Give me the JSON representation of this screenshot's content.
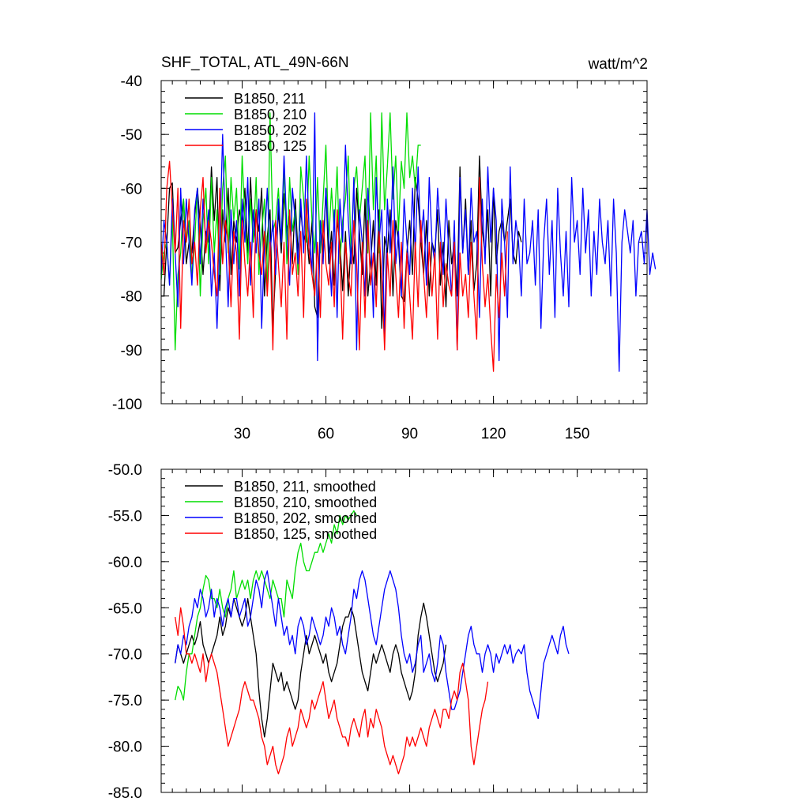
{
  "chart_data": [
    {
      "type": "line",
      "title": "SHF_TOTAL, ATL_49N-66N",
      "units": "watt/m^2",
      "xlabel": "",
      "ylabel": "",
      "xlim": [
        1,
        175
      ],
      "ylim": [
        -100,
        -40
      ],
      "xticks": [
        30,
        60,
        90,
        120,
        150
      ],
      "xtick_labels": [
        "30",
        "60",
        "90",
        "120",
        "150"
      ],
      "yticks": [
        -100,
        -90,
        -80,
        -70,
        -60,
        -50,
        -40
      ],
      "ytick_labels": [
        "-100",
        "-90",
        "-80",
        "-70",
        "-60",
        "-50",
        "-40"
      ],
      "legend_position": "top-left",
      "series": [
        {
          "name": "B1850, 211",
          "color": "#000000",
          "x_start": 1,
          "values": [
            -80,
            -80,
            -70,
            -60,
            -59,
            -72,
            -71,
            -66,
            -62,
            -74,
            -70,
            -72,
            -65,
            -60,
            -67,
            -76,
            -68,
            -70,
            -56,
            -66,
            -58,
            -79,
            -64,
            -70,
            -60,
            -76,
            -66,
            -70,
            -64,
            -67,
            -60,
            -72,
            -58,
            -70,
            -64,
            -68,
            -60,
            -80,
            -69,
            -64,
            -86,
            -75,
            -64,
            -72,
            -61,
            -68,
            -65,
            -74,
            -62,
            -72,
            -64,
            -70,
            -68,
            -74,
            -66,
            -82,
            -84,
            -66,
            -72,
            -60,
            -74,
            -68,
            -78,
            -66,
            -70,
            -79,
            -68,
            -80,
            -70,
            -74,
            -60,
            -68,
            -76,
            -62,
            -80,
            -74,
            -66,
            -78,
            -64,
            -86,
            -69,
            -72,
            -64,
            -80,
            -66,
            -70,
            -80,
            -81,
            -72,
            -66,
            -76,
            -58,
            -62,
            -70,
            -76,
            -66,
            -80,
            -70,
            -72,
            -64,
            -78,
            -70,
            -82,
            -66,
            -74,
            -70,
            -80,
            -56,
            -72,
            -62,
            -76,
            -66,
            -79,
            -74,
            -54,
            -68,
            -72,
            -64,
            -80,
            -60,
            -74,
            -68,
            -66,
            -70,
            -66,
            -62,
            -72,
            -74,
            -68,
            -70
          ]
        },
        {
          "name": "B1850, 210",
          "color": "#00dd00",
          "x_start": 1,
          "values": [
            -77,
            -72,
            -70,
            -78,
            -65,
            -90,
            -76,
            -72,
            -62,
            -70,
            -66,
            -77,
            -70,
            -60,
            -80,
            -66,
            -60,
            -74,
            -58,
            -72,
            -64,
            -76,
            -60,
            -54,
            -72,
            -58,
            -66,
            -60,
            -75,
            -54,
            -66,
            -74,
            -62,
            -70,
            -58,
            -76,
            -68,
            -62,
            -80,
            -46,
            -68,
            -66,
            -60,
            -70,
            -56,
            -74,
            -58,
            -68,
            -64,
            -76,
            -56,
            -62,
            -70,
            -54,
            -66,
            -72,
            -58,
            -72,
            -62,
            -52,
            -70,
            -60,
            -68,
            -56,
            -74,
            -66,
            -62,
            -54,
            -72,
            -60,
            -56,
            -66,
            -60,
            -54,
            -72,
            -46,
            -64,
            -54,
            -72,
            -46,
            -64,
            -56,
            -46,
            -62,
            -54,
            -68,
            -55,
            -60,
            -46,
            -58,
            -54,
            -60,
            -52,
            -52
          ]
        },
        {
          "name": "B1850, 202",
          "color": "#0000ff",
          "x_start": 1,
          "values": [
            -76,
            -66,
            -70,
            -78,
            -62,
            -72,
            -82,
            -60,
            -74,
            -62,
            -70,
            -78,
            -64,
            -60,
            -74,
            -62,
            -70,
            -64,
            -80,
            -72,
            -86,
            -70,
            -50,
            -68,
            -82,
            -64,
            -74,
            -66,
            -80,
            -62,
            -70,
            -58,
            -78,
            -64,
            -72,
            -62,
            -86,
            -70,
            -60,
            -72,
            -66,
            -76,
            -62,
            -70,
            -54,
            -68,
            -78,
            -60,
            -66,
            -74,
            -62,
            -72,
            -54,
            -68,
            -76,
            -46,
            -92,
            -66,
            -74,
            -60,
            -70,
            -80,
            -64,
            -84,
            -62,
            -70,
            -52,
            -66,
            -74,
            -58,
            -90,
            -64,
            -70,
            -80,
            -60,
            -68,
            -84,
            -58,
            -70,
            -64,
            -88,
            -62,
            -72,
            -56,
            -74,
            -68,
            -80,
            -62,
            -70,
            -76,
            -60,
            -72,
            -56,
            -70,
            -64,
            -78,
            -58,
            -70,
            -74,
            -60,
            -68,
            -76,
            -62,
            -72,
            -80,
            -66,
            -90,
            -58,
            -72,
            -64,
            -76,
            -60,
            -70,
            -68,
            -84,
            -62,
            -74,
            -56,
            -70,
            -60,
            -66,
            -92,
            -62,
            -70,
            -84,
            -56,
            -74,
            -66,
            -70,
            -80,
            -62,
            -74,
            -72,
            -66,
            -78,
            -64,
            -86,
            -70,
            -62,
            -76,
            -66,
            -84,
            -60,
            -72,
            -80,
            -68,
            -82,
            -58,
            -70,
            -66,
            -76,
            -60,
            -72,
            -64,
            -80,
            -68,
            -76,
            -62,
            -70,
            -74,
            -66,
            -80,
            -62,
            -72,
            -94,
            -70,
            -64,
            -68,
            -72,
            -66,
            -80,
            -70,
            -68,
            -74,
            -64,
            -76,
            -72,
            -75
          ]
        },
        {
          "name": "B1850, 125",
          "color": "#ff0000",
          "x_start": 1,
          "values": [
            -70,
            -76,
            -60,
            -55,
            -64,
            -72,
            -60,
            -86,
            -66,
            -70,
            -62,
            -74,
            -70,
            -78,
            -64,
            -58,
            -72,
            -66,
            -70,
            -76,
            -80,
            -60,
            -74,
            -66,
            -70,
            -82,
            -68,
            -72,
            -88,
            -66,
            -74,
            -80,
            -70,
            -84,
            -64,
            -72,
            -76,
            -68,
            -80,
            -70,
            -90,
            -66,
            -74,
            -82,
            -70,
            -88,
            -64,
            -76,
            -72,
            -80,
            -68,
            -84,
            -62,
            -72,
            -76,
            -80,
            -70,
            -84,
            -66,
            -74,
            -78,
            -70,
            -82,
            -64,
            -72,
            -88,
            -70,
            -76,
            -80,
            -66,
            -74,
            -90,
            -70,
            -84,
            -66,
            -78,
            -72,
            -82,
            -68,
            -76,
            -90,
            -72,
            -80,
            -66,
            -76,
            -84,
            -70,
            -86,
            -72,
            -80,
            -88,
            -70,
            -82,
            -66,
            -76,
            -84,
            -70,
            -80,
            -72,
            -88,
            -70,
            -82,
            -74,
            -78,
            -80,
            -70,
            -90,
            -72,
            -80,
            -76,
            -84,
            -70,
            -80,
            -88,
            -58,
            -74,
            -82,
            -76,
            -86,
            -94,
            -76,
            -84,
            -72,
            -80,
            -68
          ]
        }
      ]
    },
    {
      "type": "line",
      "title": "",
      "xlabel": "",
      "ylabel": "",
      "xlim": [
        1,
        175
      ],
      "ylim": [
        -85,
        -50
      ],
      "xticks": [
        30,
        60,
        90,
        120,
        150
      ],
      "yticks": [
        -85,
        -80,
        -75,
        -70,
        -65,
        -60,
        -55,
        -50
      ],
      "ytick_labels": [
        "-85.0",
        "-80.0",
        "-75.0",
        "-70.0",
        "-65.0",
        "-60.0",
        "-55.0",
        "-50.0"
      ],
      "legend_position": "top-left",
      "series": [
        {
          "name": "B1850, 211, smoothed",
          "color": "#000000",
          "x_start": 6,
          "values": [
            -71,
            -69,
            -70,
            -71,
            -70,
            -69,
            -68,
            -69,
            -68,
            -66.5,
            -69,
            -70,
            -71,
            -70,
            -69,
            -68,
            -66,
            -68,
            -67,
            -65,
            -66,
            -64,
            -65,
            -66,
            -67,
            -66,
            -64,
            -66,
            -68,
            -70,
            -74,
            -77,
            -79,
            -77,
            -74,
            -71,
            -72,
            -73,
            -72,
            -74,
            -73,
            -74,
            -75,
            -76,
            -75,
            -72,
            -70,
            -68,
            -70,
            -69,
            -68,
            -69,
            -70,
            -71,
            -70,
            -72,
            -73,
            -72,
            -71,
            -69,
            -67,
            -66,
            -66,
            -65,
            -66,
            -68,
            -70,
            -72,
            -73,
            -74,
            -72,
            -70,
            -71,
            -70,
            -69,
            -70,
            -71,
            -72,
            -70,
            -69,
            -70,
            -72,
            -73,
            -74,
            -75,
            -74,
            -72,
            -68,
            -66,
            -64.5,
            -66,
            -68,
            -70,
            -72,
            -73,
            -72,
            -71,
            -69
          ]
        },
        {
          "name": "B1850, 210, smoothed",
          "color": "#00dd00",
          "x_start": 6,
          "values": [
            -75,
            -73.5,
            -74,
            -75,
            -72,
            -70,
            -70,
            -68,
            -66,
            -65,
            -63,
            -61.5,
            -62,
            -64,
            -64,
            -65,
            -63,
            -65,
            -66,
            -64,
            -63,
            -61,
            -64,
            -63,
            -62,
            -63,
            -62,
            -64,
            -62,
            -61,
            -62,
            -61,
            -62,
            -63,
            -64,
            -62,
            -63,
            -64,
            -64,
            -66,
            -62,
            -63,
            -64,
            -61,
            -59,
            -58,
            -60,
            -61,
            -61,
            -60,
            -59,
            -59,
            -58,
            -59,
            -58,
            -57,
            -58,
            -56,
            -57,
            -55,
            -56,
            -55,
            -55.5,
            -55,
            -54.5,
            -55
          ]
        },
        {
          "name": "B1850, 202, smoothed",
          "color": "#0000ff",
          "x_start": 6,
          "values": [
            -71,
            -69,
            -70,
            -68,
            -69,
            -67,
            -66,
            -64,
            -65,
            -63,
            -64,
            -66,
            -65,
            -63,
            -66,
            -64,
            -65,
            -67,
            -65,
            -64,
            -66,
            -64,
            -64,
            -66,
            -65,
            -64,
            -67,
            -66,
            -64,
            -62,
            -63,
            -65,
            -62,
            -61,
            -63,
            -65,
            -67,
            -64,
            -66,
            -68,
            -67,
            -69,
            -68,
            -70,
            -67,
            -66,
            -67,
            -69,
            -68,
            -66,
            -67,
            -68,
            -69,
            -68,
            -66,
            -67,
            -65,
            -66,
            -68,
            -67,
            -69,
            -70,
            -68,
            -66,
            -63,
            -64,
            -62,
            -61,
            -62,
            -64,
            -66,
            -68,
            -69,
            -67,
            -65,
            -63,
            -62,
            -61,
            -62,
            -63,
            -65,
            -68,
            -70,
            -71,
            -70,
            -72,
            -71,
            -69,
            -68,
            -72,
            -71,
            -70,
            -72,
            -73,
            -71,
            -68,
            -69,
            -72,
            -74,
            -76,
            -76,
            -75,
            -74,
            -72,
            -70,
            -68,
            -67,
            -69,
            -70,
            -70,
            -72,
            -70,
            -69,
            -70,
            -72,
            -70,
            -71,
            -70,
            -69,
            -70,
            -69,
            -71,
            -70,
            -69.5,
            -70,
            -69,
            -72,
            -74,
            -75,
            -76,
            -77,
            -74,
            -71,
            -70,
            -69,
            -68,
            -69,
            -70,
            -68,
            -67,
            -69,
            -70
          ]
        },
        {
          "name": "B1850, 125, smoothed",
          "color": "#ff0000",
          "x_start": 6,
          "values": [
            -66,
            -68,
            -65,
            -67,
            -70,
            -70,
            -71,
            -70,
            -71,
            -72,
            -70,
            -73,
            -71,
            -70,
            -71,
            -72,
            -74,
            -76,
            -78,
            -80,
            -79,
            -78,
            -77,
            -76,
            -74,
            -73,
            -74,
            -75,
            -75,
            -76,
            -77,
            -79,
            -80,
            -82,
            -81,
            -80,
            -82,
            -83,
            -82,
            -81,
            -79,
            -78,
            -80,
            -79,
            -78,
            -76,
            -77,
            -78,
            -77,
            -75,
            -76,
            -75,
            -74,
            -73,
            -75,
            -77,
            -76,
            -75,
            -77,
            -78,
            -79,
            -79,
            -80,
            -78,
            -77,
            -78,
            -79,
            -77,
            -76,
            -79,
            -77,
            -78,
            -76,
            -77,
            -78,
            -80,
            -81,
            -82,
            -81,
            -82,
            -83,
            -82,
            -81,
            -79,
            -80,
            -79,
            -80,
            -79,
            -78,
            -79,
            -80,
            -78,
            -77,
            -76,
            -77,
            -78,
            -76,
            -76,
            -77,
            -75,
            -74,
            -75,
            -72,
            -71,
            -73,
            -75,
            -80,
            -82,
            -80,
            -78,
            -76,
            -75,
            -73
          ]
        }
      ]
    }
  ]
}
